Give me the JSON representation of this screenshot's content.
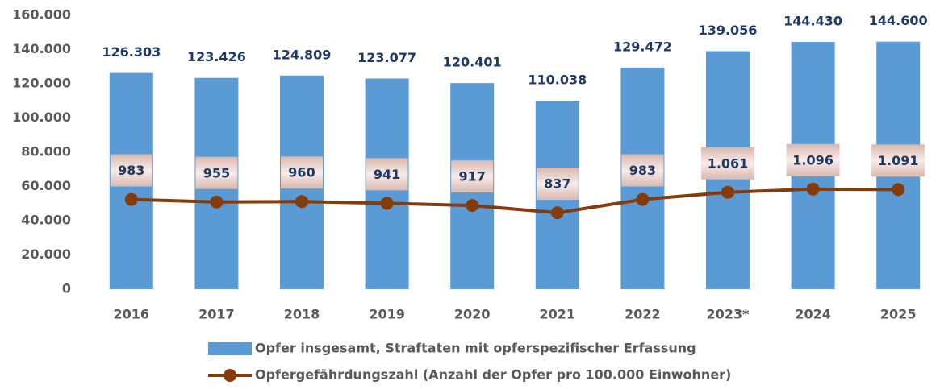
{
  "chart_data": {
    "type": "bar",
    "categories": [
      "2016",
      "2017",
      "2018",
      "2019",
      "2020",
      "2021",
      "2022",
      "2023*",
      "2024",
      "2025"
    ],
    "series": [
      {
        "name": "Opfer insgesamt, Straftaten mit opferspezifischer Erfassung",
        "type": "bar",
        "color": "#5b9bd5",
        "values": [
          126303,
          123426,
          124809,
          123077,
          120401,
          110038,
          129472,
          139056,
          144430,
          144600
        ],
        "value_labels": [
          "126.303",
          "123.426",
          "124.809",
          "123.077",
          "120.401",
          "110.038",
          "129.472",
          "139.056",
          "144.430",
          "144.600"
        ]
      },
      {
        "name": "Opfergefährdungszahl (Anzahl der Opfer pro 100.000 Einwohner)",
        "type": "line",
        "axis": "y2",
        "color": "#843c0c",
        "values": [
          983,
          955,
          960,
          941,
          917,
          837,
          983,
          1061,
          1096,
          1091
        ],
        "value_labels": [
          "983",
          "955",
          "960",
          "941",
          "917",
          "837",
          "983",
          "1.061",
          "1.096",
          "1.091"
        ]
      }
    ],
    "ylim": [
      0,
      160000
    ],
    "yticks": [
      0,
      {
        "value": 20000,
        "label": "20.000"
      },
      {
        "value": 40000,
        "label": "40.000"
      },
      {
        "value": 60000,
        "label": "60.000"
      },
      {
        "value": 80000,
        "label": "80.000"
      },
      {
        "value": 100000,
        "label": "100.000"
      },
      {
        "value": 120000,
        "label": "120.000"
      },
      {
        "value": 140000,
        "label": "140.000"
      },
      {
        "value": 160000,
        "label": "160.000"
      }
    ],
    "y2lim": [
      0,
      3000
    ],
    "grid": false,
    "legend": "bottom"
  }
}
